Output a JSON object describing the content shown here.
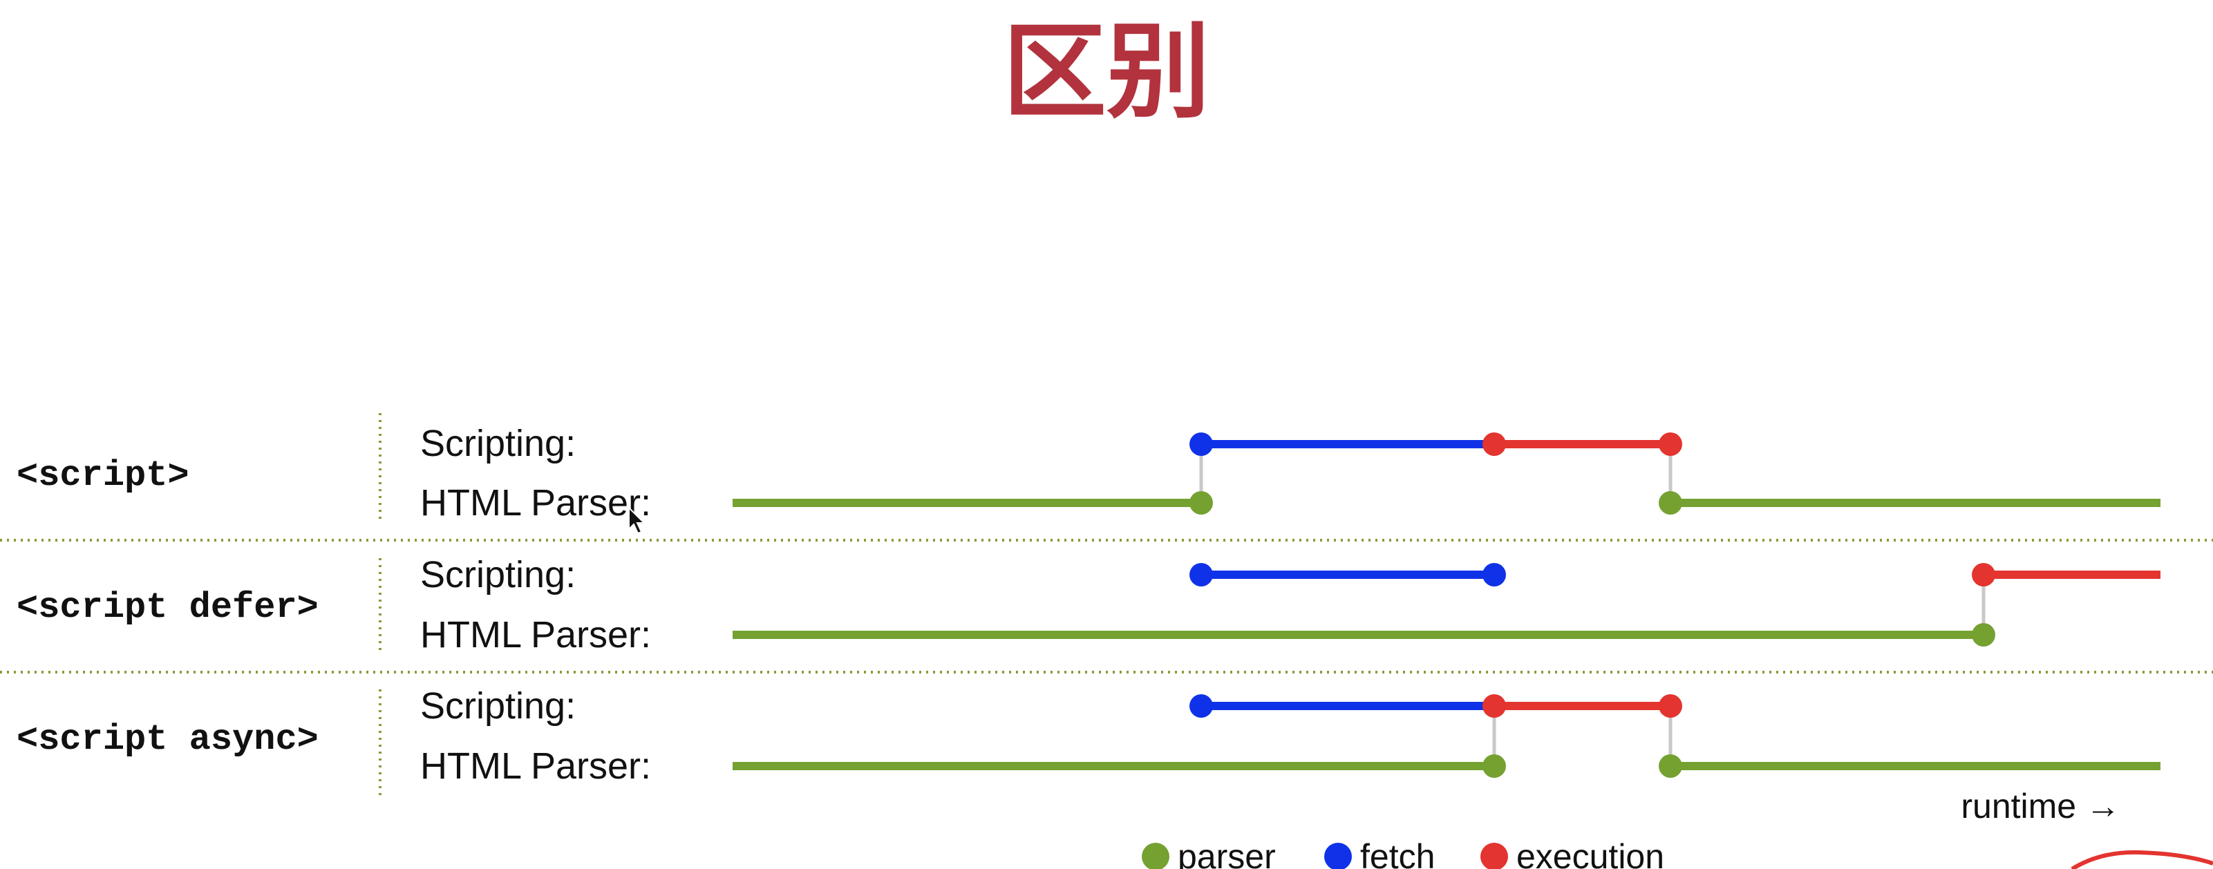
{
  "title": "区别",
  "diagram": {
    "rows": [
      {
        "tag": "<script>",
        "scripting_label": "Scripting:",
        "parser_label": "HTML Parser:"
      },
      {
        "tag": "<script defer>",
        "scripting_label": "Scripting:",
        "parser_label": "HTML Parser:"
      },
      {
        "tag": "<script async>",
        "scripting_label": "Scripting:",
        "parser_label": "HTML Parser:"
      }
    ],
    "runtime_label": "runtime →",
    "legend": [
      {
        "label": "parser",
        "color": "#75a131"
      },
      {
        "label": "fetch",
        "color": "#0f32e8"
      },
      {
        "label": "execution",
        "color": "#e3342f"
      }
    ],
    "colors": {
      "parser": "#75a131",
      "fetch": "#0f32e8",
      "execution": "#e3342f",
      "connector": "#c8c8c8",
      "divider": "#8a9a3a",
      "title": "#b2333d",
      "text": "#111111"
    }
  }
}
